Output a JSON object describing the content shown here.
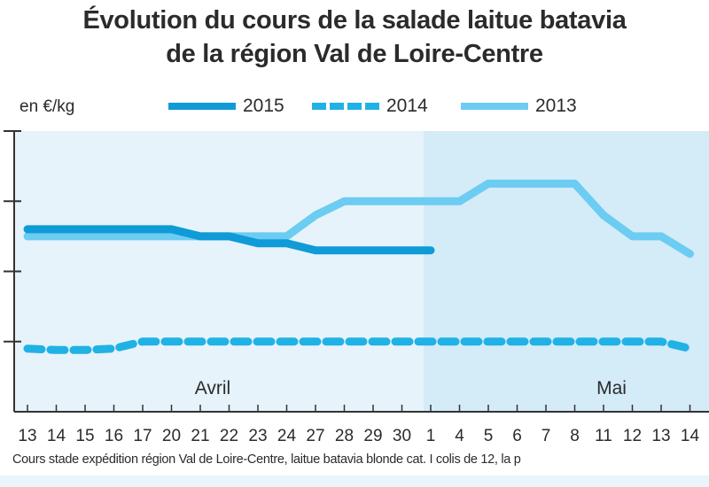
{
  "title_line1": "Évolution du cours de la salade laitue batavia",
  "title_line2": "de la région Val de Loire-Centre",
  "unit_label": "en €/kg",
  "footnote": "Cours stade expédition région Val de Loire-Centre, laitue batavia blonde cat. I colis de 12, la p",
  "colors": {
    "s2015": "#0f9bd7",
    "s2014": "#20b2e4",
    "s2013": "#6cccf2",
    "bg_april": "#e6f3fb",
    "bg_may": "#d4ebf8",
    "axis": "#333333"
  },
  "chart_data": {
    "type": "line",
    "title": "Évolution du cours de la salade laitue batavia de la région Val de Loire-Centre",
    "ylabel": "en €/kg",
    "xlabel": "",
    "y_tick_labels": [
      "",
      "",
      "",
      ""
    ],
    "ylim": [
      0,
      4
    ],
    "grid": false,
    "legend_position": "top",
    "month_labels": [
      "Avril",
      "Mai"
    ],
    "categories": [
      "13",
      "14",
      "15",
      "16",
      "17",
      "20",
      "21",
      "22",
      "23",
      "24",
      "27",
      "28",
      "29",
      "30",
      "1",
      "4",
      "5",
      "6",
      "7",
      "8",
      "11",
      "12",
      "13",
      "14"
    ],
    "series": [
      {
        "name": "2015",
        "style": "solid-thick",
        "values": [
          2.6,
          2.6,
          2.6,
          2.6,
          2.6,
          2.6,
          2.5,
          2.5,
          2.4,
          2.4,
          2.3,
          2.3,
          2.3,
          2.3,
          2.3,
          null,
          null,
          null,
          null,
          null,
          null,
          null,
          null,
          null
        ]
      },
      {
        "name": "2014",
        "style": "dashed",
        "values": [
          0.9,
          0.88,
          0.88,
          0.9,
          1.0,
          1.0,
          1.0,
          1.0,
          1.0,
          1.0,
          1.0,
          1.0,
          1.0,
          1.0,
          1.0,
          1.0,
          1.0,
          1.0,
          1.0,
          1.0,
          1.0,
          1.0,
          1.0,
          0.9
        ]
      },
      {
        "name": "2013",
        "style": "solid",
        "values": [
          2.5,
          2.5,
          2.5,
          2.5,
          2.5,
          2.5,
          2.5,
          2.5,
          2.5,
          2.5,
          2.8,
          3.0,
          3.0,
          3.0,
          3.0,
          3.0,
          3.25,
          3.25,
          3.25,
          3.25,
          2.8,
          2.5,
          2.5,
          2.25
        ]
      }
    ]
  }
}
